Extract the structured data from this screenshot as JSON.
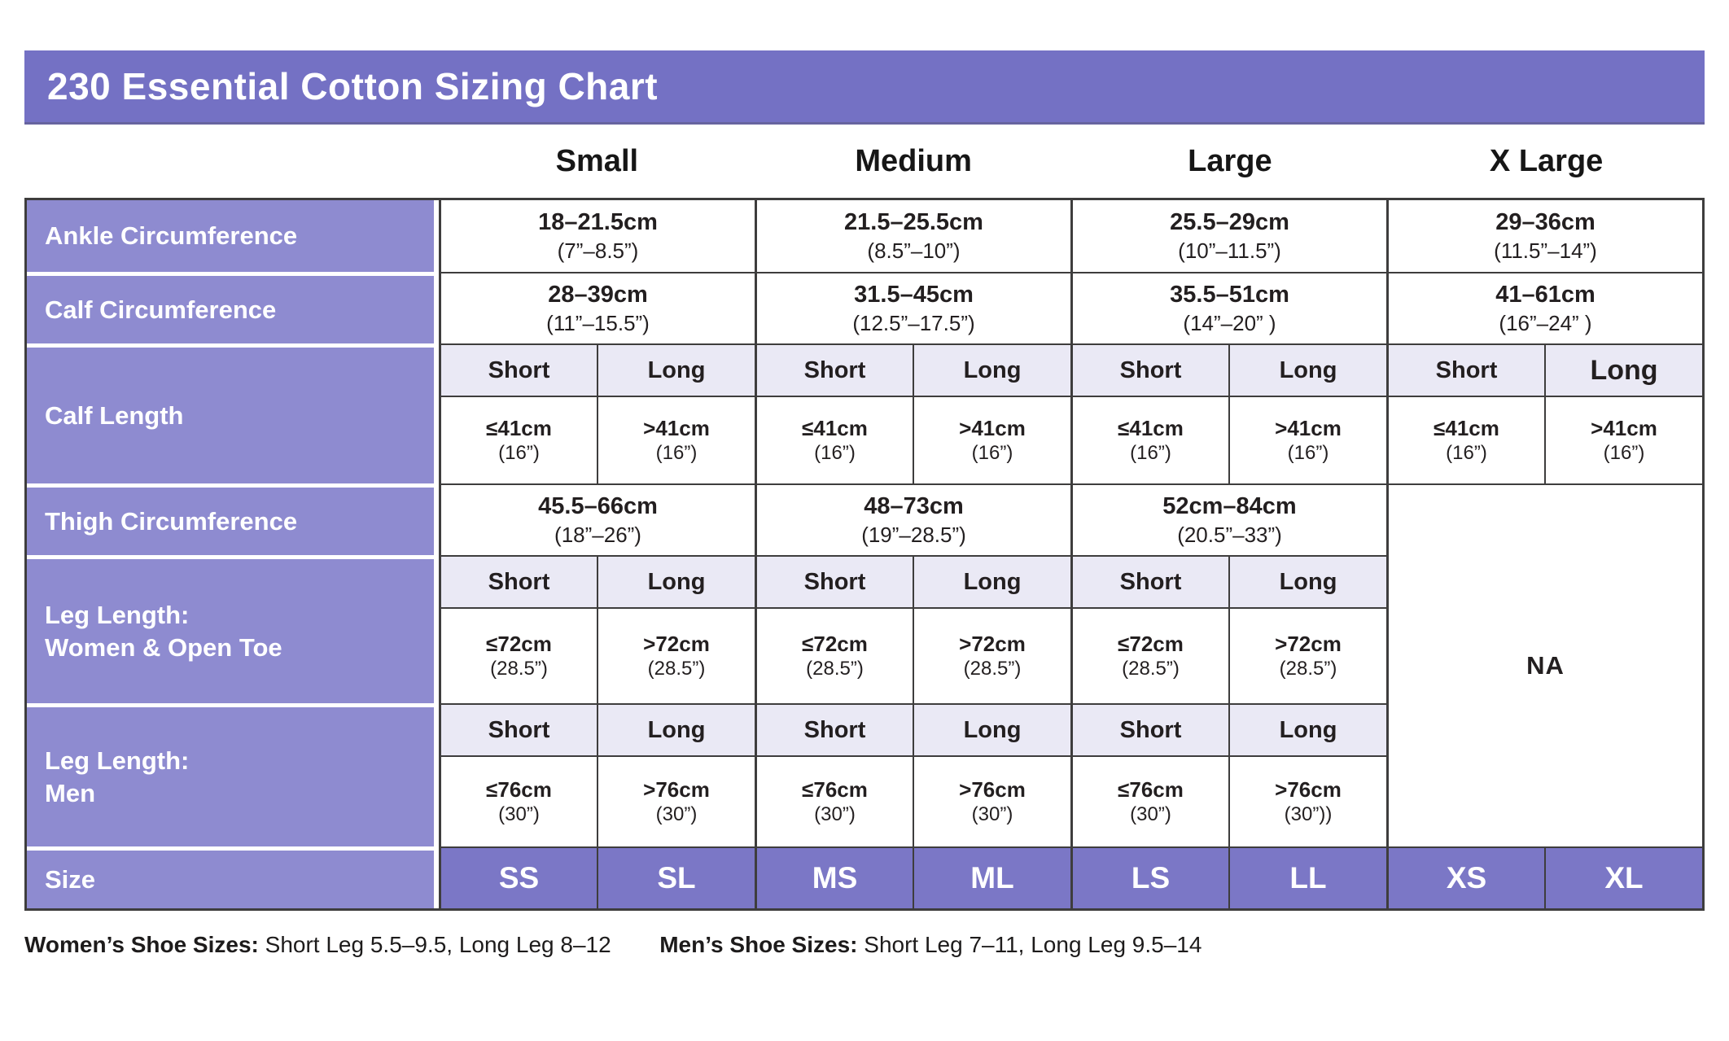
{
  "chart_data": {
    "type": "table",
    "title": "230 Essential Cotton Sizing Chart",
    "column_groups": [
      "Small",
      "Medium",
      "Large",
      "X Large"
    ],
    "rows": {
      "ankle": {
        "label": "Ankle Circumference",
        "values": [
          {
            "cm": "18–21.5cm",
            "in": "(7”–8.5”)"
          },
          {
            "cm": "21.5–25.5cm",
            "in": "(8.5”–10”)"
          },
          {
            "cm": "25.5–29cm",
            "in": "(10”–11.5”)"
          },
          {
            "cm": "29–36cm",
            "in": "(11.5”–14”)"
          }
        ]
      },
      "calf_circumference": {
        "label": "Calf Circumference",
        "values": [
          {
            "cm": "28–39cm",
            "in": "(11”–15.5”)"
          },
          {
            "cm": "31.5–45cm",
            "in": "(12.5”–17.5”)"
          },
          {
            "cm": "35.5–51cm",
            "in": "(14”–20” )"
          },
          {
            "cm": "41–61cm",
            "in": "(16”–24” )"
          }
        ]
      },
      "calf_length": {
        "label": "Calf Length",
        "cells": [
          {
            "type": "Short",
            "cm": "≤41cm",
            "in": "(16”)"
          },
          {
            "type": "Long",
            "cm": ">41cm",
            "in": "(16”)"
          },
          {
            "type": "Short",
            "cm": "≤41cm",
            "in": "(16”)"
          },
          {
            "type": "Long",
            "cm": ">41cm",
            "in": "(16”)"
          },
          {
            "type": "Short",
            "cm": "≤41cm",
            "in": "(16”)"
          },
          {
            "type": "Long",
            "cm": ">41cm",
            "in": "(16”)"
          },
          {
            "type": "Short",
            "cm": "≤41cm",
            "in": "(16”)"
          },
          {
            "type": "Long",
            "cm": ">41cm",
            "in": "(16”)"
          }
        ]
      },
      "thigh": {
        "label": "Thigh Circumference",
        "values": [
          {
            "cm": "45.5–66cm",
            "in": "(18”–26”)"
          },
          {
            "cm": "48–73cm",
            "in": "(19”–28.5”)"
          },
          {
            "cm": "52cm–84cm",
            "in": "(20.5”–33”)"
          }
        ]
      },
      "leg_women": {
        "label_line1": "Leg Length:",
        "label_line2": "Women & Open Toe",
        "cells": [
          {
            "type": "Short",
            "cm": "≤72cm",
            "in": "(28.5”)"
          },
          {
            "type": "Long",
            "cm": ">72cm",
            "in": "(28.5”)"
          },
          {
            "type": "Short",
            "cm": "≤72cm",
            "in": "(28.5”)"
          },
          {
            "type": "Long",
            "cm": ">72cm",
            "in": "(28.5”)"
          },
          {
            "type": "Short",
            "cm": "≤72cm",
            "in": "(28.5”)"
          },
          {
            "type": "Long",
            "cm": ">72cm",
            "in": "(28.5”)"
          }
        ]
      },
      "leg_men": {
        "label_line1": "Leg Length:",
        "label_line2": "Men",
        "cells": [
          {
            "type": "Short",
            "cm": "≤76cm",
            "in": "(30”)"
          },
          {
            "type": "Long",
            "cm": ">76cm",
            "in": "(30”)"
          },
          {
            "type": "Short",
            "cm": "≤76cm",
            "in": "(30”)"
          },
          {
            "type": "Long",
            "cm": ">76cm",
            "in": "(30”)"
          },
          {
            "type": "Short",
            "cm": "≤76cm",
            "in": "(30”)"
          },
          {
            "type": "Long",
            "cm": ">76cm",
            "in": "(30”))"
          }
        ]
      },
      "size": {
        "label": "Size",
        "values": [
          "SS",
          "SL",
          "MS",
          "ML",
          "LS",
          "LL",
          "XS",
          "XL"
        ]
      },
      "na": "NA"
    },
    "footer": {
      "women_label": "Women’s Shoe Sizes:",
      "women_value": "Short Leg 5.5–9.5, Long Leg 8–12",
      "men_label": "Men’s Shoe Sizes:",
      "men_value": "Short Leg 7–11, Long Leg 9.5–14"
    }
  },
  "colors": {
    "title_bar": "#7471c4",
    "row_label": "#8e8bd0",
    "size_row": "#7b77c6",
    "subheader_bg": "#eae9f5",
    "border": "#3e3d3d",
    "text": "#231f20"
  }
}
